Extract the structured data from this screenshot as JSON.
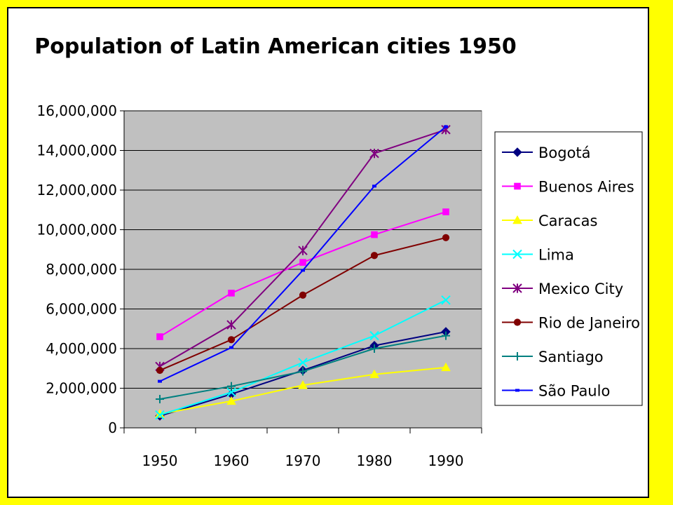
{
  "chart_data": {
    "type": "line",
    "title": "Population of Latin American cities 1950",
    "xlabel": "",
    "ylabel": "",
    "categories": [
      "1950",
      "1960",
      "1970",
      "1980",
      "1990"
    ],
    "ylim": [
      0,
      16000000
    ],
    "y_ticks": [
      "0",
      "2,000,000",
      "4,000,000",
      "6,000,000",
      "8,000,000",
      "10,000,000",
      "12,000,000",
      "14,000,000",
      "16,000,000"
    ],
    "grid": true,
    "legend_position": "right",
    "plot_background": "#c0c0c0",
    "series": [
      {
        "name": "Bogotá",
        "color": "#000080",
        "marker": "diamond",
        "values": [
          600000,
          1700000,
          2900000,
          4150000,
          4850000
        ]
      },
      {
        "name": "Buenos Aires",
        "color": "#ff00ff",
        "marker": "square",
        "values": [
          4600000,
          6800000,
          8350000,
          9750000,
          10900000
        ]
      },
      {
        "name": "Caracas",
        "color": "#ffff00",
        "marker": "triangle",
        "values": [
          700000,
          1350000,
          2150000,
          2700000,
          3050000
        ]
      },
      {
        "name": "Lima",
        "color": "#00ffff",
        "marker": "x",
        "values": [
          650000,
          1800000,
          3300000,
          4650000,
          6450000
        ]
      },
      {
        "name": "Mexico City",
        "color": "#800080",
        "marker": "star",
        "values": [
          3100000,
          5200000,
          8950000,
          13850000,
          15050000
        ]
      },
      {
        "name": "Rio de Janeiro",
        "color": "#800000",
        "marker": "circle",
        "values": [
          2900000,
          4450000,
          6700000,
          8700000,
          9600000
        ]
      },
      {
        "name": "Santiago",
        "color": "#008080",
        "marker": "plus",
        "values": [
          1450000,
          2100000,
          2850000,
          4000000,
          4650000
        ]
      },
      {
        "name": "São Paulo",
        "color": "#0000ff",
        "marker": "dash",
        "values": [
          2350000,
          4050000,
          7950000,
          12200000,
          15200000
        ]
      }
    ]
  }
}
